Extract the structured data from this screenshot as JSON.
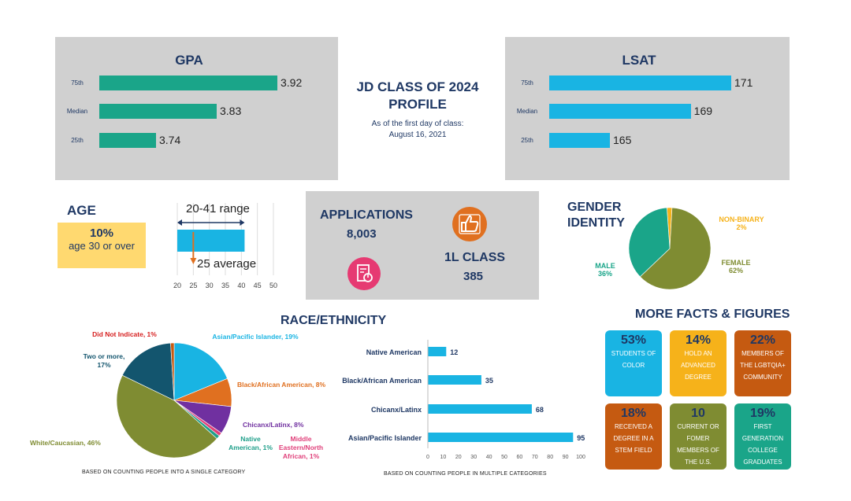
{
  "colors": {
    "panel": "#d0d0d0",
    "navy": "#1f3864",
    "teal": "#1aa589",
    "cyan": "#19b4e3",
    "orange": "#e07020",
    "pink": "#e63a72",
    "yellow": "#ffd970",
    "olive": "#7f8c32",
    "gold": "#f6b21a",
    "brown": "#c55a11",
    "darkteal": "#13556e",
    "purple": "#7030a0",
    "sea": "#1f9f8a",
    "red": "#d62020",
    "magenta": "#e0407a"
  },
  "header": {
    "title_line1": "JD CLASS OF 2024",
    "title_line2": "PROFILE",
    "sub_line1": "As of the first day of class:",
    "sub_line2": "August 16, 2021"
  },
  "age": {
    "title": "AGE",
    "pct": "10%",
    "desc": "age 30 or over",
    "range_label": "20-41 range",
    "avg_label": "25 average"
  },
  "applications": {
    "title": "APPLICATIONS",
    "value": "8,003",
    "class_title": "1L CLASS",
    "class_value": "385"
  },
  "gender": {
    "title_line1": "GENDER",
    "title_line2": "IDENTITY"
  },
  "race": {
    "title": "RACE/ETHNICITY",
    "footnote_single": "BASED ON COUNTING  PEOPLE INTO A SINGLE CATEGORY",
    "footnote_multi": "BASED ON COUNTING  PEOPLE IN MULTIPLE CATEGORIES"
  },
  "facts": {
    "title": "MORE FACTS & FIGURES",
    "items": [
      {
        "big": "53%",
        "text": "STUDENTS OF COLOR",
        "bg": "#19b4e3"
      },
      {
        "big": "14%",
        "text": "HOLD AN ADVANCED DEGREE",
        "bg": "#f6b21a"
      },
      {
        "big": "22%",
        "text": "MEMBERS OF THE LGBTQIA+ COMMUNITY",
        "bg": "#c55a11"
      },
      {
        "big": "18%",
        "text": "RECEIVED A DEGREE IN A STEM FIELD",
        "bg": "#c55a11"
      },
      {
        "big": "10",
        "text": "CURRENT OR FOMER MEMBERS OF THE U.S. MILITARY",
        "bg": "#7f8c32"
      },
      {
        "big": "19%",
        "text": "FIRST GENERATION COLLEGE GRADUATES",
        "bg": "#1aa589"
      }
    ]
  },
  "chart_data": [
    {
      "type": "bar",
      "orientation": "horizontal",
      "title": "GPA",
      "categories": [
        "75th",
        "Median",
        "25th"
      ],
      "values": [
        3.92,
        3.83,
        3.74
      ],
      "value_labels": [
        "3.92",
        "3.83",
        "3.74"
      ],
      "color": "#1aa589"
    },
    {
      "type": "bar",
      "orientation": "horizontal",
      "title": "LSAT",
      "categories": [
        "75th",
        "Median",
        "25th"
      ],
      "values": [
        171,
        169,
        165
      ],
      "value_labels": [
        "171",
        "169",
        "165"
      ],
      "color": "#19b4e3"
    },
    {
      "type": "bar",
      "orientation": "horizontal",
      "title": "",
      "range": [
        20,
        41
      ],
      "average": 25,
      "x_ticks": [
        "20",
        "25",
        "30",
        "35",
        "40",
        "45",
        "50"
      ],
      "xlim": [
        20,
        50
      ],
      "color": "#19b4e3"
    },
    {
      "type": "pie",
      "title": "",
      "slices": [
        {
          "label": "NON-BINARY",
          "value_label": "2%",
          "value": 2,
          "color": "#f6b21a"
        },
        {
          "label": "FEMALE",
          "value_label": "62%",
          "value": 62,
          "color": "#7f8c32"
        },
        {
          "label": "MALE",
          "value_label": "36%",
          "value": 36,
          "color": "#1aa589"
        }
      ]
    },
    {
      "type": "pie",
      "title": "",
      "slices": [
        {
          "label": "Asian/Pacific Islander, 19%",
          "value": 19,
          "color": "#19b4e3"
        },
        {
          "label": "Black/African American, 8%",
          "value": 8,
          "color": "#e07020"
        },
        {
          "label": "Chicanx/Latinx, 8%",
          "value": 8,
          "color": "#7030a0"
        },
        {
          "label": "Middle Eastern/North African, 1%",
          "value": 1,
          "color": "#e0407a"
        },
        {
          "label": "Native American, 1%",
          "value": 1,
          "color": "#1f9f8a"
        },
        {
          "label": "White/Caucasian, 46%",
          "value": 46,
          "color": "#7f8c32"
        },
        {
          "label": "Two or more, 17%",
          "value": 17,
          "color": "#13556e"
        },
        {
          "label": "Did Not Indicate, 1%",
          "value": 1,
          "color": "#c55a11"
        }
      ]
    },
    {
      "type": "bar",
      "orientation": "horizontal",
      "title": "",
      "categories": [
        "Native American",
        "Black/African American",
        "Chicanx/Latinx",
        "Asian/Pacific Islander"
      ],
      "values": [
        12,
        35,
        68,
        95
      ],
      "x_ticks": [
        "0",
        "10",
        "20",
        "30",
        "40",
        "50",
        "60",
        "70",
        "80",
        "90",
        "100"
      ],
      "xlim": [
        0,
        100
      ],
      "color": "#19b4e3"
    }
  ]
}
